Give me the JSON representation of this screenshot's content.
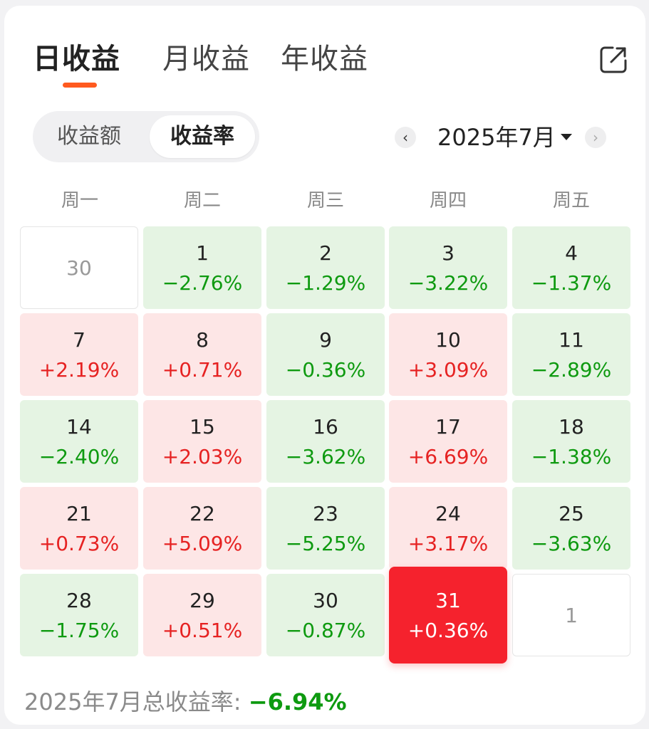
{
  "tabs": [
    {
      "label": "日收益",
      "active": true
    },
    {
      "label": "月收益",
      "active": false
    },
    {
      "label": "年收益",
      "active": false
    }
  ],
  "share_icon": "share-icon",
  "segment": {
    "options": [
      {
        "label": "收益额",
        "active": false
      },
      {
        "label": "收益率",
        "active": true
      }
    ]
  },
  "month_nav": {
    "prev_icon": "chevron-left-icon",
    "label": "2025年7月",
    "dropdown_icon": "caret-down-icon",
    "next_icon": "chevron-right-icon"
  },
  "weekdays": [
    "周一",
    "周二",
    "周三",
    "周四",
    "周五"
  ],
  "calendar": [
    [
      {
        "day": "30",
        "value": "",
        "state": "outside"
      },
      {
        "day": "1",
        "value": "−2.76%",
        "state": "down"
      },
      {
        "day": "2",
        "value": "−1.29%",
        "state": "down"
      },
      {
        "day": "3",
        "value": "−3.22%",
        "state": "down"
      },
      {
        "day": "4",
        "value": "−1.37%",
        "state": "down"
      }
    ],
    [
      {
        "day": "7",
        "value": "+2.19%",
        "state": "up"
      },
      {
        "day": "8",
        "value": "+0.71%",
        "state": "up"
      },
      {
        "day": "9",
        "value": "−0.36%",
        "state": "down"
      },
      {
        "day": "10",
        "value": "+3.09%",
        "state": "up"
      },
      {
        "day": "11",
        "value": "−2.89%",
        "state": "down"
      }
    ],
    [
      {
        "day": "14",
        "value": "−2.40%",
        "state": "down"
      },
      {
        "day": "15",
        "value": "+2.03%",
        "state": "up"
      },
      {
        "day": "16",
        "value": "−3.62%",
        "state": "down"
      },
      {
        "day": "17",
        "value": "+6.69%",
        "state": "up"
      },
      {
        "day": "18",
        "value": "−1.38%",
        "state": "down"
      }
    ],
    [
      {
        "day": "21",
        "value": "+0.73%",
        "state": "up"
      },
      {
        "day": "22",
        "value": "+5.09%",
        "state": "up"
      },
      {
        "day": "23",
        "value": "−5.25%",
        "state": "down"
      },
      {
        "day": "24",
        "value": "+3.17%",
        "state": "up"
      },
      {
        "day": "25",
        "value": "−3.63%",
        "state": "down"
      }
    ],
    [
      {
        "day": "28",
        "value": "−1.75%",
        "state": "down"
      },
      {
        "day": "29",
        "value": "+0.51%",
        "state": "up"
      },
      {
        "day": "30",
        "value": "−0.87%",
        "state": "down"
      },
      {
        "day": "31",
        "value": "+0.36%",
        "state": "selected"
      },
      {
        "day": "1",
        "value": "",
        "state": "outside"
      }
    ]
  ],
  "summary": {
    "label": "2025年7月总收益率:",
    "value": "−6.94%"
  },
  "colors": {
    "up": "#e62222",
    "down": "#0e9a10",
    "up_bg": "#fde6e6",
    "down_bg": "#e5f4e3",
    "selected_bg": "#f5222d",
    "tab_accent": "#ff5a1f"
  }
}
